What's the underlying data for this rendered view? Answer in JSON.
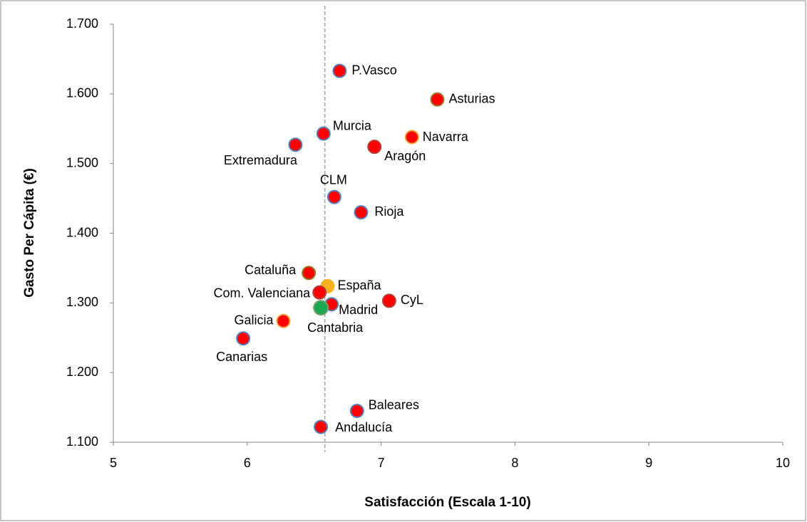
{
  "chart_data": {
    "type": "scatter",
    "xlabel": "Satisfacción (Escala 1-10)",
    "ylabel": "Gasto Per Cápita (€)",
    "xlim": [
      5,
      10
    ],
    "xticks": [
      5,
      6,
      7,
      8,
      9,
      10
    ],
    "ylim": [
      1100,
      1700
    ],
    "yticks": [
      {
        "value": 1100,
        "label": "1.100"
      },
      {
        "value": 1200,
        "label": "1.200"
      },
      {
        "value": 1300,
        "label": "1.300"
      },
      {
        "value": 1400,
        "label": "1.400"
      },
      {
        "value": 1500,
        "label": "1.500"
      },
      {
        "value": 1600,
        "label": "1.600"
      },
      {
        "value": 1700,
        "label": "1.700"
      }
    ],
    "grid": false,
    "reference_x": 6.58,
    "labels": [
      "P.Vasco",
      "Asturias",
      "Murcia",
      "Navarra",
      "Extremadura",
      "Aragón",
      "CLM",
      "Rioja",
      "Cataluña",
      "España",
      "Com. Valenciana",
      "CyL",
      "Madrid",
      "Cantabria",
      "Galicia",
      "Canarias",
      "Baleares",
      "Andalucía"
    ],
    "x": [
      6.69,
      7.42,
      6.57,
      7.23,
      6.36,
      6.95,
      6.65,
      6.85,
      6.46,
      6.6,
      6.54,
      7.06,
      6.63,
      6.55,
      6.27,
      5.97,
      6.82,
      6.55
    ],
    "y": [
      1633,
      1592,
      1543,
      1538,
      1527,
      1524,
      1452,
      1430,
      1343,
      1324,
      1315,
      1303,
      1298,
      1293,
      1274,
      1249,
      1145,
      1122
    ],
    "colors": [
      "#ff0000",
      "#ff0000",
      "#ff0000",
      "#ff0000",
      "#ff0000",
      "#ff0000",
      "#ff0000",
      "#ff0000",
      "#ff0000",
      "#f9b21f",
      "#ff0000",
      "#ff0000",
      "#ff0000",
      "#1aa64f",
      "#ff0000",
      "#ff0000",
      "#ff0000",
      "#ff0000"
    ],
    "edge_colors": [
      "#5b7fb8",
      "#9a7a2a",
      "#5b7fb8",
      "#e8a33a",
      "#5b7fb8",
      "#b2413a",
      "#5b7fb8",
      "#5b7fb8",
      "#9a7a2a",
      "#f9b21f",
      "#b2413a",
      "#b2413a",
      "#5b7fb8",
      "#7fa070",
      "#e8a33a",
      "#5b7fb8",
      "#5b7fb8",
      "#5b7fb8"
    ]
  }
}
